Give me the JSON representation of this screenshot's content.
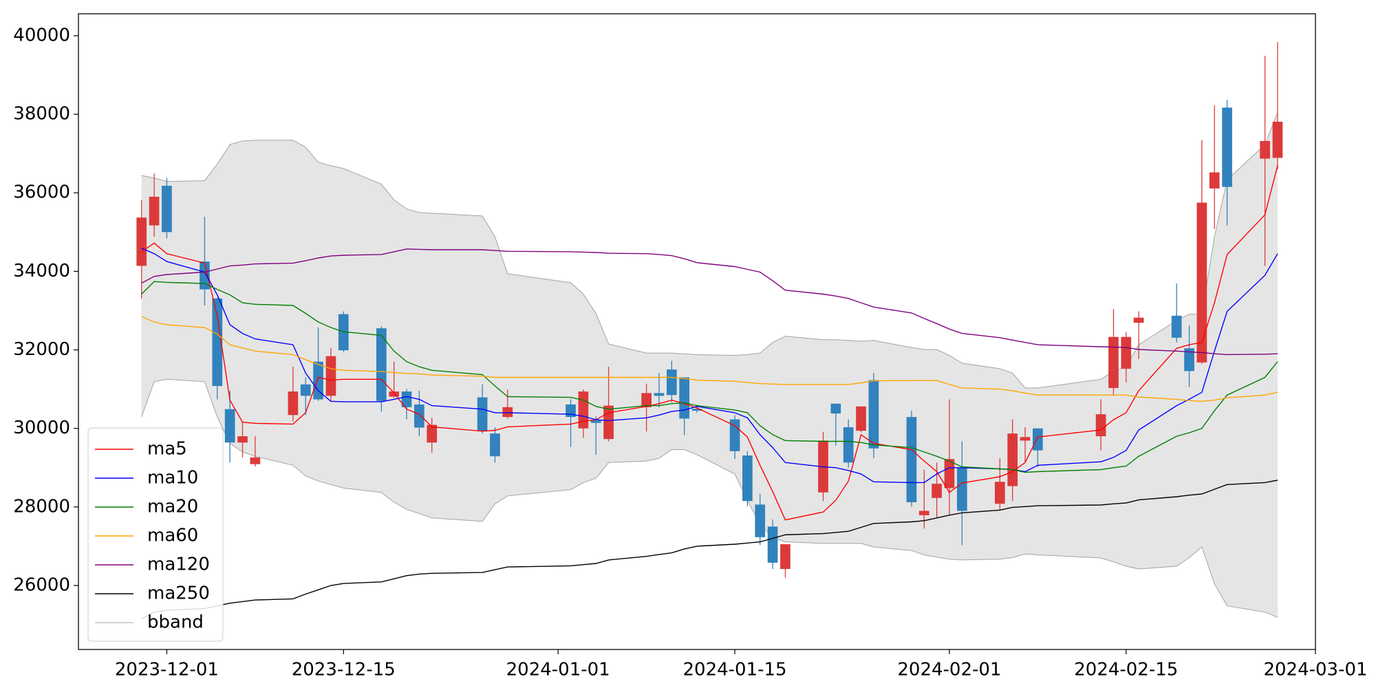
{
  "chart_data": {
    "type": "candlestick",
    "x": [
      "2023-11-29",
      "2023-11-30",
      "2023-12-01",
      "2023-12-04",
      "2023-12-05",
      "2023-12-06",
      "2023-12-07",
      "2023-12-08",
      "2023-12-11",
      "2023-12-12",
      "2023-12-13",
      "2023-12-14",
      "2023-12-15",
      "2023-12-18",
      "2023-12-19",
      "2023-12-20",
      "2023-12-21",
      "2023-12-22",
      "2023-12-26",
      "2023-12-27",
      "2023-12-28",
      "2024-01-02",
      "2024-01-03",
      "2024-01-04",
      "2024-01-05",
      "2024-01-08",
      "2024-01-09",
      "2024-01-10",
      "2024-01-11",
      "2024-01-12",
      "2024-01-15",
      "2024-01-16",
      "2024-01-17",
      "2024-01-18",
      "2024-01-19",
      "2024-01-22",
      "2024-01-23",
      "2024-01-24",
      "2024-01-25",
      "2024-01-26",
      "2024-01-29",
      "2024-01-30",
      "2024-01-31",
      "2024-02-01",
      "2024-02-02",
      "2024-02-05",
      "2024-02-06",
      "2024-02-07",
      "2024-02-08",
      "2024-02-13",
      "2024-02-14",
      "2024-02-15",
      "2024-02-16",
      "2024-02-19",
      "2024-02-20",
      "2024-02-21",
      "2024-02-22",
      "2024-02-23",
      "2024-02-26",
      "2024-02-27"
    ],
    "open": [
      34140,
      35170,
      36180,
      34250,
      33310,
      30490,
      29640,
      29090,
      30340,
      31120,
      31700,
      30830,
      32910,
      32550,
      30810,
      30940,
      30610,
      29640,
      30790,
      29870,
      30290,
      30610,
      30000,
      30200,
      29730,
      30540,
      30900,
      31500,
      31300,
      30500,
      30230,
      29310,
      28060,
      27500,
      26420,
      28370,
      30630,
      30030,
      29940,
      31230,
      30290,
      27790,
      28230,
      28480,
      28990,
      28080,
      28530,
      29690,
      30000,
      29800,
      31030,
      31520,
      32690,
      32870,
      32040,
      31680,
      36110,
      38170,
      36870,
      36890
    ],
    "high": [
      35820,
      36490,
      36380,
      35390,
      33330,
      30960,
      30160,
      29800,
      31570,
      31300,
      32570,
      32040,
      32980,
      32600,
      31700,
      31000,
      30960,
      30270,
      31120,
      30030,
      30990,
      30740,
      30990,
      30310,
      31570,
      31140,
      31410,
      31720,
      31300,
      30600,
      30340,
      29420,
      28330,
      27680,
      27050,
      29910,
      30630,
      30230,
      30560,
      31410,
      30450,
      28950,
      29130,
      30740,
      29670,
      29240,
      30230,
      30030,
      30000,
      30740,
      33040,
      32460,
      32980,
      33690,
      32620,
      37340,
      38230,
      38370,
      39490,
      39840
    ],
    "low": [
      33310,
      34880,
      34840,
      33130,
      30740,
      29130,
      29260,
      29030,
      30180,
      30340,
      30700,
      30700,
      31950,
      30430,
      30780,
      30230,
      29800,
      29380,
      29870,
      29130,
      30250,
      29530,
      29760,
      29330,
      29670,
      29920,
      30540,
      30660,
      29830,
      30400,
      29220,
      28010,
      27030,
      26420,
      26200,
      28150,
      29560,
      29000,
      29900,
      29240,
      28010,
      27450,
      27720,
      27800,
      27030,
      27920,
      28150,
      29150,
      29020,
      29440,
      30830,
      31170,
      31770,
      32190,
      31050,
      31640,
      35080,
      35170,
      34140,
      36600
    ],
    "close": [
      35370,
      35900,
      35000,
      33540,
      31080,
      29640,
      29800,
      29260,
      30940,
      30830,
      30740,
      31840,
      31990,
      30700,
      30940,
      30540,
      30020,
      30090,
      29940,
      29290,
      30540,
      30290,
      30940,
      30140,
      30580,
      30900,
      30830,
      30850,
      30250,
      30450,
      29420,
      28150,
      27230,
      26580,
      27050,
      29690,
      30380,
      29130,
      30560,
      29490,
      28120,
      27900,
      28590,
      29220,
      27900,
      28640,
      29870,
      29780,
      29440,
      30360,
      32330,
      32330,
      32820,
      32310,
      31460,
      35750,
      36520,
      36150,
      37320,
      37810
    ],
    "up_color": "#dc3a3a",
    "down_color": "#3182bd",
    "series": [
      {
        "name": "ma5",
        "color": "red",
        "values": [
          34500,
          34720,
          34450,
          34210,
          32860,
          30720,
          30160,
          30130,
          30110,
          30400,
          31300,
          31230,
          31250,
          31250,
          30900,
          30490,
          30360,
          30040,
          29930,
          29950,
          30040,
          30110,
          30180,
          30220,
          30400,
          30560,
          30630,
          30720,
          30630,
          30520,
          30070,
          29780,
          29060,
          28390,
          27670,
          27870,
          28170,
          28660,
          29840,
          29620,
          29460,
          29170,
          28900,
          28370,
          28610,
          28770,
          28900,
          29130,
          29780,
          29960,
          30220,
          30400,
          30960,
          32040,
          32130,
          32190,
          33200,
          34430,
          35440,
          36700
        ]
      },
      {
        "name": "ma10",
        "color": "blue",
        "values": [
          34590,
          34450,
          34250,
          33980,
          33400,
          32640,
          32420,
          32280,
          32130,
          31410,
          30960,
          30690,
          30680,
          30680,
          30740,
          30810,
          30740,
          30580,
          30490,
          30400,
          30400,
          30360,
          30310,
          30220,
          30200,
          30270,
          30340,
          30430,
          30470,
          30560,
          30400,
          30270,
          29840,
          29510,
          29130,
          29020,
          29000,
          28930,
          28840,
          28640,
          28620,
          28620,
          28840,
          29000,
          29000,
          28970,
          28950,
          28900,
          29060,
          29150,
          29260,
          29440,
          29960,
          30580,
          30740,
          30920,
          31970,
          32980,
          33900,
          34450
        ]
      },
      {
        "name": "ma20",
        "color": "green",
        "values": [
          33420,
          33740,
          33720,
          33690,
          33540,
          33400,
          33200,
          33160,
          33130,
          32930,
          32710,
          32570,
          32460,
          32370,
          31970,
          31700,
          31570,
          31480,
          31370,
          31080,
          30810,
          30790,
          30720,
          30560,
          30490,
          30580,
          30580,
          30630,
          30650,
          30580,
          30470,
          30400,
          30070,
          29840,
          29690,
          29670,
          29670,
          29670,
          29640,
          29580,
          29510,
          29400,
          29290,
          29170,
          29020,
          28970,
          28950,
          28880,
          28900,
          28950,
          29000,
          29040,
          29290,
          29800,
          29890,
          30000,
          30450,
          30850,
          31300,
          31700
        ]
      },
      {
        "name": "ma60",
        "color": "orange",
        "values": [
          32850,
          32710,
          32640,
          32570,
          32400,
          32130,
          32050,
          31970,
          31880,
          31750,
          31630,
          31520,
          31480,
          31450,
          31420,
          31400,
          31390,
          31360,
          31330,
          31300,
          31300,
          31300,
          31300,
          31300,
          31300,
          31300,
          31300,
          31300,
          31270,
          31230,
          31200,
          31170,
          31140,
          31130,
          31120,
          31120,
          31120,
          31120,
          31160,
          31210,
          31220,
          31220,
          31220,
          31120,
          31030,
          31000,
          30960,
          30900,
          30850,
          30850,
          30850,
          30850,
          30800,
          30740,
          30710,
          30690,
          30720,
          30780,
          30850,
          30920
        ]
      },
      {
        "name": "ma120",
        "color": "purple",
        "values": [
          33700,
          33870,
          33920,
          33980,
          34060,
          34140,
          34160,
          34190,
          34210,
          34270,
          34340,
          34390,
          34410,
          34430,
          34500,
          34570,
          34560,
          34550,
          34550,
          34530,
          34510,
          34500,
          34490,
          34480,
          34460,
          34450,
          34430,
          34400,
          34320,
          34220,
          34120,
          34050,
          33980,
          33760,
          33520,
          33420,
          33370,
          33310,
          33200,
          33090,
          32940,
          32800,
          32670,
          32530,
          32420,
          32310,
          32250,
          32190,
          32130,
          32080,
          32070,
          32060,
          32010,
          31970,
          31950,
          31930,
          31900,
          31880,
          31890,
          31900
        ]
      },
      {
        "name": "ma250",
        "color": "black",
        "values": [
          25150,
          25320,
          25370,
          25410,
          25480,
          25550,
          25590,
          25630,
          25660,
          25780,
          25890,
          26000,
          26050,
          26090,
          26170,
          26250,
          26290,
          26310,
          26330,
          26400,
          26470,
          26500,
          26530,
          26560,
          26650,
          26740,
          26790,
          26830,
          26930,
          27000,
          27050,
          27080,
          27110,
          27200,
          27290,
          27320,
          27350,
          27380,
          27480,
          27580,
          27620,
          27650,
          27720,
          27790,
          27850,
          27920,
          27990,
          28010,
          28030,
          28050,
          28080,
          28100,
          28180,
          28260,
          28300,
          28330,
          28450,
          28570,
          28620,
          28680
        ]
      }
    ],
    "bands": {
      "name": "bband",
      "color": "gray",
      "fill": "#e5e5e5",
      "upper": [
        36440,
        36380,
        36290,
        36310,
        36730,
        37230,
        37320,
        37340,
        37340,
        37160,
        36780,
        36690,
        36620,
        36220,
        35820,
        35590,
        35500,
        35480,
        35410,
        34880,
        33940,
        33710,
        33420,
        32930,
        32150,
        31920,
        31920,
        31920,
        31900,
        31880,
        31860,
        31880,
        31920,
        32190,
        32350,
        32260,
        32260,
        32240,
        32220,
        32240,
        32060,
        32010,
        32010,
        31860,
        31660,
        31520,
        31410,
        31030,
        31030,
        31250,
        31450,
        31570,
        32130,
        32750,
        32910,
        32910,
        34880,
        36330,
        37230,
        38050
      ],
      "lower": [
        30290,
        31190,
        31250,
        31190,
        30290,
        29620,
        29400,
        29290,
        29060,
        28790,
        28660,
        28570,
        28480,
        28370,
        28120,
        27940,
        27830,
        27720,
        27630,
        28080,
        28280,
        28440,
        28620,
        28730,
        29130,
        29170,
        29240,
        29460,
        29460,
        29330,
        28840,
        28170,
        27550,
        27230,
        27110,
        27070,
        27070,
        27070,
        27070,
        26980,
        26890,
        26780,
        26720,
        26670,
        26650,
        26670,
        26710,
        26800,
        26780,
        26700,
        26600,
        26490,
        26420,
        26490,
        26710,
        26980,
        26040,
        25480,
        25320,
        25190
      ]
    },
    "xlim": [
      "2023-11-24",
      "2024-03-01"
    ],
    "ylim": [
      24370,
      40560
    ],
    "xticks": [
      "2023-12-01",
      "2023-12-15",
      "2024-01-01",
      "2024-01-15",
      "2024-02-01",
      "2024-02-15",
      "2024-03-01"
    ],
    "yticks": [
      26000,
      28000,
      30000,
      32000,
      34000,
      36000,
      38000,
      40000
    ],
    "legend": "lower left"
  }
}
